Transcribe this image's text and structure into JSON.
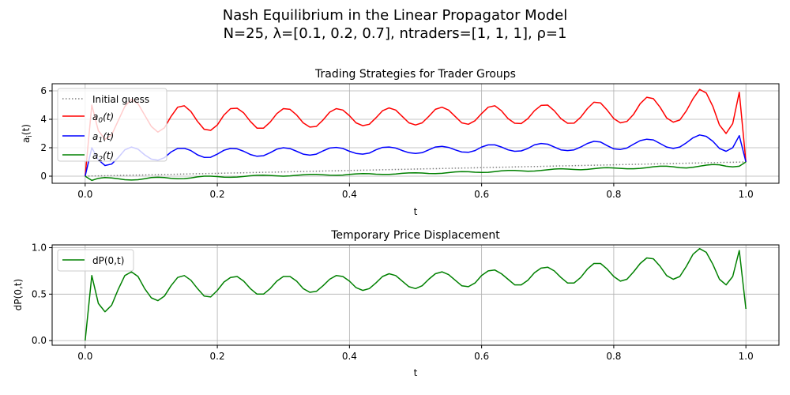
{
  "suptitle": {
    "line1": "Nash Equilibrium in the Linear Propagator Model",
    "line2": "N=25, λ=[0.1, 0.2, 0.7], ntraders=[1, 1, 1], ρ=1"
  },
  "colors": {
    "initial_guess": "#808080",
    "a0": "#ff0000",
    "a1": "#0000ff",
    "a2": "#008000",
    "dP": "#008000",
    "grid": "#b0b0b0"
  },
  "chart_data": [
    {
      "type": "line",
      "title": "Trading Strategies for Trader Groups",
      "xlabel": "t",
      "ylabel": "a_i(t)",
      "xlim": [
        -0.05,
        1.05
      ],
      "ylim": [
        -0.5,
        6.5
      ],
      "xticks": [
        "0.0",
        "0.2",
        "0.4",
        "0.6",
        "0.8",
        "1.0"
      ],
      "yticks": [
        "0",
        "2",
        "4",
        "6"
      ],
      "grid": true,
      "legend_position": "upper-left",
      "x": [
        0,
        0.01,
        0.02,
        0.03,
        0.04,
        0.05,
        0.06,
        0.07,
        0.08,
        0.09,
        0.1,
        0.11,
        0.12,
        0.13,
        0.14,
        0.15,
        0.16,
        0.17,
        0.18,
        0.19,
        0.2,
        0.21,
        0.22,
        0.23,
        0.24,
        0.25,
        0.26,
        0.27,
        0.28,
        0.29,
        0.3,
        0.31,
        0.32,
        0.33,
        0.34,
        0.35,
        0.36,
        0.37,
        0.38,
        0.39,
        0.4,
        0.41,
        0.42,
        0.43,
        0.44,
        0.45,
        0.46,
        0.47,
        0.48,
        0.49,
        0.5,
        0.51,
        0.52,
        0.53,
        0.54,
        0.55,
        0.56,
        0.57,
        0.58,
        0.59,
        0.6,
        0.61,
        0.62,
        0.63,
        0.64,
        0.65,
        0.66,
        0.67,
        0.68,
        0.69,
        0.7,
        0.71,
        0.72,
        0.73,
        0.74,
        0.75,
        0.76,
        0.77,
        0.78,
        0.79,
        0.8,
        0.81,
        0.82,
        0.83,
        0.84,
        0.85,
        0.86,
        0.87,
        0.88,
        0.89,
        0.9,
        0.91,
        0.92,
        0.93,
        0.94,
        0.95,
        0.96,
        0.97,
        0.98,
        0.99,
        1.0
      ],
      "series": [
        {
          "name": "Initial guess",
          "style": "dotted",
          "color_key": "initial_guess",
          "values": [
            0,
            0.01,
            0.02,
            0.03,
            0.04,
            0.05,
            0.06,
            0.07,
            0.08,
            0.09,
            0.1,
            0.11,
            0.12,
            0.13,
            0.14,
            0.15,
            0.16,
            0.17,
            0.18,
            0.19,
            0.2,
            0.21,
            0.22,
            0.23,
            0.24,
            0.25,
            0.26,
            0.27,
            0.28,
            0.29,
            0.3,
            0.31,
            0.32,
            0.33,
            0.34,
            0.35,
            0.36,
            0.37,
            0.38,
            0.39,
            0.4,
            0.41,
            0.42,
            0.43,
            0.44,
            0.45,
            0.46,
            0.47,
            0.48,
            0.49,
            0.5,
            0.51,
            0.52,
            0.53,
            0.54,
            0.55,
            0.56,
            0.57,
            0.58,
            0.59,
            0.6,
            0.61,
            0.62,
            0.63,
            0.64,
            0.65,
            0.66,
            0.67,
            0.68,
            0.69,
            0.7,
            0.71,
            0.72,
            0.73,
            0.74,
            0.75,
            0.76,
            0.77,
            0.78,
            0.79,
            0.8,
            0.81,
            0.82,
            0.83,
            0.84,
            0.85,
            0.86,
            0.87,
            0.88,
            0.89,
            0.9,
            0.91,
            0.92,
            0.93,
            0.94,
            0.95,
            0.96,
            0.97,
            0.98,
            0.99,
            1.0
          ]
        },
        {
          "name": "a_0(t)",
          "legend_main": "a",
          "legend_sub": "0",
          "legend_suffix": "(t)",
          "style": "solid",
          "color_key": "a0",
          "values": [
            0,
            5.0,
            3.2,
            2.6,
            2.9,
            3.9,
            4.9,
            5.4,
            5.1,
            4.3,
            3.5,
            3.1,
            3.4,
            4.2,
            4.85,
            4.95,
            4.55,
            3.85,
            3.3,
            3.22,
            3.6,
            4.3,
            4.75,
            4.78,
            4.45,
            3.85,
            3.38,
            3.38,
            3.8,
            4.4,
            4.75,
            4.7,
            4.3,
            3.75,
            3.45,
            3.5,
            3.95,
            4.5,
            4.75,
            4.65,
            4.25,
            3.75,
            3.55,
            3.65,
            4.1,
            4.6,
            4.8,
            4.65,
            4.2,
            3.75,
            3.6,
            3.75,
            4.2,
            4.7,
            4.85,
            4.65,
            4.2,
            3.75,
            3.65,
            3.9,
            4.4,
            4.85,
            4.95,
            4.6,
            4.05,
            3.72,
            3.7,
            4.05,
            4.6,
            4.98,
            5.0,
            4.6,
            4.05,
            3.72,
            3.73,
            4.15,
            4.75,
            5.2,
            5.15,
            4.65,
            4.05,
            3.75,
            3.85,
            4.35,
            5.1,
            5.55,
            5.45,
            4.85,
            4.1,
            3.8,
            3.95,
            4.6,
            5.45,
            6.1,
            5.85,
            4.9,
            3.6,
            3.0,
            3.7,
            5.9,
            1.0
          ]
        },
        {
          "name": "a_1(t)",
          "legend_main": "a",
          "legend_sub": "1",
          "legend_suffix": "(t)",
          "style": "solid",
          "color_key": "a1",
          "values": [
            0,
            2.0,
            1.15,
            0.75,
            0.85,
            1.3,
            1.85,
            2.05,
            1.9,
            1.5,
            1.2,
            1.12,
            1.3,
            1.7,
            1.95,
            1.96,
            1.8,
            1.5,
            1.32,
            1.33,
            1.55,
            1.82,
            1.95,
            1.92,
            1.75,
            1.52,
            1.4,
            1.44,
            1.65,
            1.9,
            2.0,
            1.94,
            1.75,
            1.55,
            1.48,
            1.55,
            1.78,
            1.98,
            2.02,
            1.95,
            1.75,
            1.6,
            1.55,
            1.62,
            1.85,
            2.02,
            2.05,
            1.98,
            1.8,
            1.65,
            1.6,
            1.65,
            1.85,
            2.05,
            2.1,
            2.02,
            1.85,
            1.7,
            1.68,
            1.8,
            2.05,
            2.2,
            2.2,
            2.05,
            1.85,
            1.75,
            1.78,
            1.95,
            2.2,
            2.3,
            2.25,
            2.05,
            1.85,
            1.8,
            1.85,
            2.05,
            2.3,
            2.45,
            2.4,
            2.15,
            1.92,
            1.88,
            1.98,
            2.25,
            2.5,
            2.6,
            2.55,
            2.3,
            2.05,
            1.95,
            2.05,
            2.35,
            2.7,
            2.9,
            2.8,
            2.45,
            1.95,
            1.75,
            2.0,
            2.85,
            1.0
          ]
        },
        {
          "name": "a_2(t)",
          "legend_main": "a",
          "legend_sub": "2",
          "legend_suffix": "(t)",
          "style": "solid",
          "color_key": "a2",
          "values": [
            0,
            -0.3,
            -0.15,
            -0.1,
            -0.12,
            -0.18,
            -0.25,
            -0.27,
            -0.25,
            -0.18,
            -0.1,
            -0.08,
            -0.1,
            -0.15,
            -0.18,
            -0.17,
            -0.12,
            -0.05,
            0.0,
            0.0,
            -0.03,
            -0.07,
            -0.08,
            -0.06,
            -0.02,
            0.03,
            0.06,
            0.07,
            0.05,
            0.02,
            0.0,
            0.02,
            0.06,
            0.1,
            0.12,
            0.12,
            0.1,
            0.07,
            0.06,
            0.08,
            0.12,
            0.16,
            0.18,
            0.17,
            0.14,
            0.12,
            0.12,
            0.15,
            0.2,
            0.23,
            0.24,
            0.22,
            0.19,
            0.18,
            0.2,
            0.25,
            0.3,
            0.32,
            0.31,
            0.28,
            0.26,
            0.27,
            0.32,
            0.37,
            0.4,
            0.4,
            0.37,
            0.35,
            0.36,
            0.4,
            0.45,
            0.5,
            0.52,
            0.5,
            0.47,
            0.45,
            0.48,
            0.53,
            0.58,
            0.6,
            0.58,
            0.55,
            0.52,
            0.52,
            0.55,
            0.6,
            0.66,
            0.7,
            0.7,
            0.66,
            0.6,
            0.58,
            0.62,
            0.7,
            0.78,
            0.82,
            0.8,
            0.7,
            0.65,
            0.7,
            1.0
          ]
        }
      ]
    },
    {
      "type": "line",
      "title": "Temporary Price Displacement",
      "xlabel": "t",
      "ylabel": "dP(0,t)",
      "xlim": [
        -0.05,
        1.05
      ],
      "ylim": [
        -0.05,
        1.03
      ],
      "xticks": [
        "0.0",
        "0.2",
        "0.4",
        "0.6",
        "0.8",
        "1.0"
      ],
      "yticks": [
        "0.0",
        "0.5",
        "1.0"
      ],
      "grid": true,
      "legend_position": "upper-left",
      "x": [
        0,
        0.01,
        0.02,
        0.03,
        0.04,
        0.05,
        0.06,
        0.07,
        0.08,
        0.09,
        0.1,
        0.11,
        0.12,
        0.13,
        0.14,
        0.15,
        0.16,
        0.17,
        0.18,
        0.19,
        0.2,
        0.21,
        0.22,
        0.23,
        0.24,
        0.25,
        0.26,
        0.27,
        0.28,
        0.29,
        0.3,
        0.31,
        0.32,
        0.33,
        0.34,
        0.35,
        0.36,
        0.37,
        0.38,
        0.39,
        0.4,
        0.41,
        0.42,
        0.43,
        0.44,
        0.45,
        0.46,
        0.47,
        0.48,
        0.49,
        0.5,
        0.51,
        0.52,
        0.53,
        0.54,
        0.55,
        0.56,
        0.57,
        0.58,
        0.59,
        0.6,
        0.61,
        0.62,
        0.63,
        0.64,
        0.65,
        0.66,
        0.67,
        0.68,
        0.69,
        0.7,
        0.71,
        0.72,
        0.73,
        0.74,
        0.75,
        0.76,
        0.77,
        0.78,
        0.79,
        0.8,
        0.81,
        0.82,
        0.83,
        0.84,
        0.85,
        0.86,
        0.87,
        0.88,
        0.89,
        0.9,
        0.91,
        0.92,
        0.93,
        0.94,
        0.95,
        0.96,
        0.97,
        0.98,
        0.99,
        1.0
      ],
      "series": [
        {
          "name": "dP(0,t)",
          "style": "solid",
          "color_key": "dP",
          "values": [
            0,
            0.7,
            0.4,
            0.31,
            0.38,
            0.55,
            0.7,
            0.74,
            0.69,
            0.56,
            0.46,
            0.43,
            0.48,
            0.59,
            0.68,
            0.7,
            0.65,
            0.56,
            0.48,
            0.47,
            0.54,
            0.63,
            0.68,
            0.69,
            0.64,
            0.56,
            0.5,
            0.5,
            0.56,
            0.64,
            0.69,
            0.69,
            0.64,
            0.56,
            0.52,
            0.53,
            0.59,
            0.66,
            0.7,
            0.69,
            0.64,
            0.57,
            0.54,
            0.56,
            0.62,
            0.69,
            0.72,
            0.7,
            0.64,
            0.58,
            0.56,
            0.59,
            0.66,
            0.72,
            0.74,
            0.71,
            0.65,
            0.59,
            0.58,
            0.62,
            0.7,
            0.75,
            0.76,
            0.72,
            0.66,
            0.6,
            0.6,
            0.65,
            0.73,
            0.78,
            0.79,
            0.75,
            0.68,
            0.62,
            0.62,
            0.68,
            0.77,
            0.83,
            0.83,
            0.77,
            0.69,
            0.64,
            0.66,
            0.74,
            0.83,
            0.89,
            0.88,
            0.8,
            0.7,
            0.66,
            0.69,
            0.8,
            0.93,
            0.99,
            0.95,
            0.82,
            0.66,
            0.6,
            0.69,
            0.97,
            0.34
          ]
        }
      ]
    }
  ]
}
